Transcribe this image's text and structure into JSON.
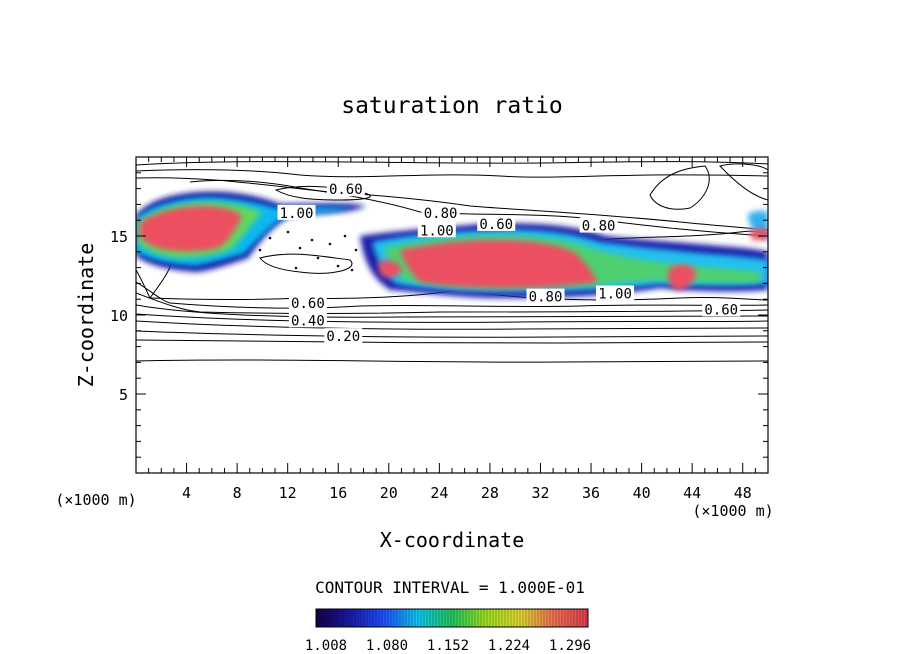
{
  "chart_data": {
    "type": "contour",
    "title": "saturation ratio",
    "xlabel": "X-coordinate",
    "ylabel": "Z-coordinate",
    "x_unit_left": "(×1000 m)",
    "x_unit_right": "(×1000 m)",
    "xlim": [
      0,
      50
    ],
    "ylim": [
      0,
      20
    ],
    "x_ticks": [
      "4",
      "8",
      "12",
      "16",
      "20",
      "24",
      "28",
      "32",
      "36",
      "40",
      "44",
      "48"
    ],
    "y_ticks": [
      "5",
      "10",
      "15"
    ],
    "contour_interval_label": "CONTOUR INTERVAL = 1.000E-01",
    "contour_labels": [
      {
        "text": "0.60",
        "x": 16.6,
        "y": 17.9
      },
      {
        "text": "1.00",
        "x": 12.7,
        "y": 16.4
      },
      {
        "text": "0.80",
        "x": 24.1,
        "y": 16.4
      },
      {
        "text": "1.00",
        "x": 23.8,
        "y": 15.3
      },
      {
        "text": "0.60",
        "x": 28.5,
        "y": 15.7
      },
      {
        "text": "0.80",
        "x": 36.6,
        "y": 15.6
      },
      {
        "text": "0.80",
        "x": 32.4,
        "y": 11.1
      },
      {
        "text": "1.00",
        "x": 37.9,
        "y": 11.3
      },
      {
        "text": "0.60",
        "x": 46.3,
        "y": 10.3
      },
      {
        "text": "0.60",
        "x": 13.6,
        "y": 10.7
      },
      {
        "text": "0.40",
        "x": 13.6,
        "y": 9.6
      },
      {
        "text": "0.20",
        "x": 16.4,
        "y": 8.6
      }
    ],
    "supersaturated_regions": [
      {
        "x_range": [
          0,
          9.5
        ],
        "z_range": [
          12.8,
          17.6
        ],
        "max": 1.3
      },
      {
        "x_range": [
          18.5,
          21
        ],
        "z_range": [
          12.1,
          13.5
        ],
        "max": 1.3
      },
      {
        "x_range": [
          24,
          36
        ],
        "z_range": [
          11.4,
          15.4
        ],
        "max": 1.3
      },
      {
        "x_range": [
          42,
          44
        ],
        "z_range": [
          11.4,
          13.3
        ],
        "max": 1.3
      }
    ],
    "colorbar": {
      "stops": [
        "#14004a",
        "#1a1aa8",
        "#2050ff",
        "#10c8f0",
        "#20c860",
        "#a0e020",
        "#e0d830",
        "#f07050",
        "#e04050"
      ],
      "tick_labels": [
        "1.008",
        "1.080",
        "1.152",
        "1.224",
        "1.296"
      ]
    }
  }
}
